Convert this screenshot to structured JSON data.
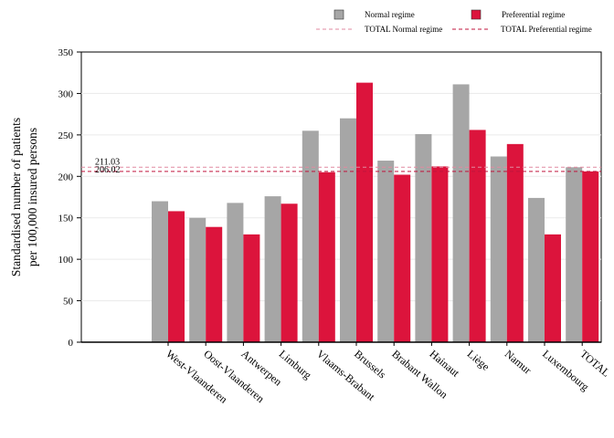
{
  "chart_data": {
    "type": "bar",
    "title": "",
    "xlabel": "",
    "ylabel": [
      "Standardised number of patients",
      "per 100,000 insured persons"
    ],
    "ylim": [
      0,
      350
    ],
    "yticks": [
      0,
      50,
      100,
      150,
      200,
      250,
      300,
      350
    ],
    "grid": true,
    "legend_position": "top-right",
    "categories": [
      "West-Vlaanderen",
      "Oost-Vlaanderen",
      "Antwerpen",
      "Limburg",
      "Vlaams-Brabant",
      "Brussels",
      "Brabant Wallon",
      "Hainaut",
      "Liège",
      "Namur",
      "Luxembourg",
      "TOTAL"
    ],
    "series": [
      {
        "name": "Normal regime",
        "color": "#a6a6a6",
        "values": [
          170,
          150,
          168,
          176,
          255,
          270,
          219,
          251,
          311,
          224,
          174,
          211
        ]
      },
      {
        "name": "Preferential regime",
        "color": "#dc143c",
        "values": [
          158,
          139,
          130,
          167,
          205,
          313,
          202,
          212,
          256,
          239,
          130,
          206
        ]
      }
    ],
    "reference_lines": [
      {
        "name": "TOTAL Normal regime",
        "value": 211.03,
        "label": "211.03",
        "color": "#e08aa0"
      },
      {
        "name": "TOTAL Preferential regime",
        "value": 206.02,
        "label": "206.02",
        "color": "#c0143c"
      }
    ]
  }
}
